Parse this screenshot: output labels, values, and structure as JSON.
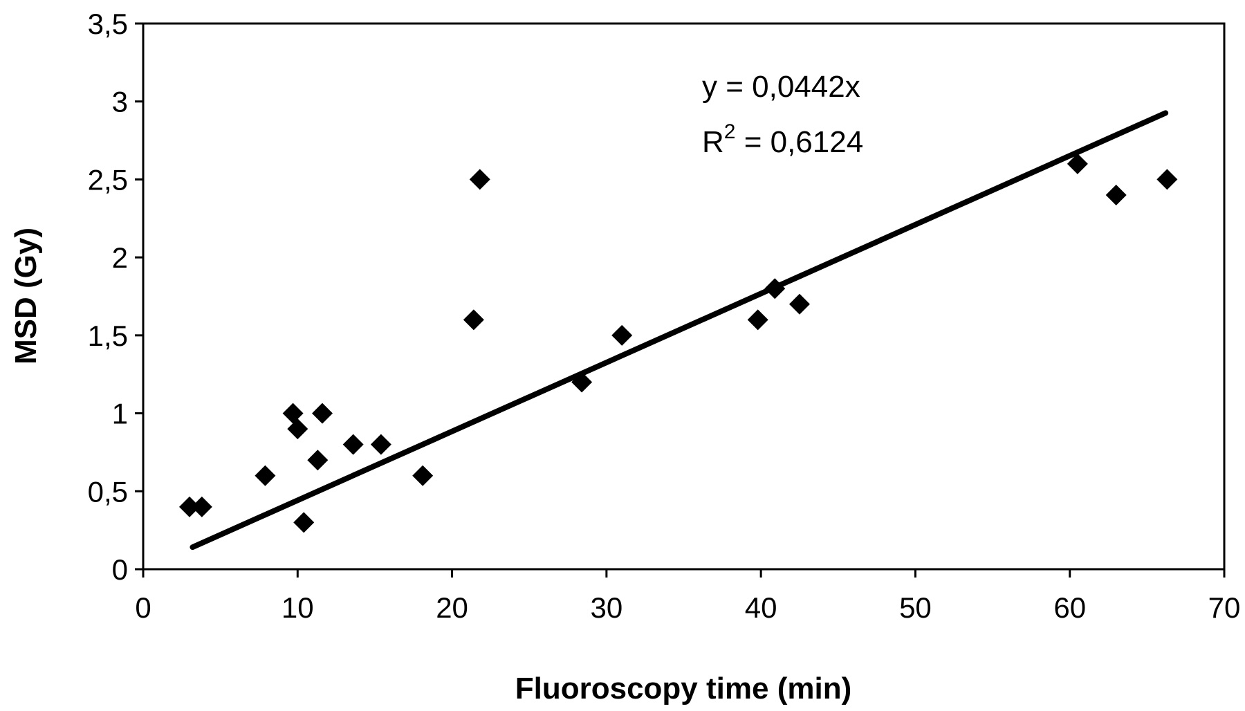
{
  "chart_data": {
    "type": "scatter",
    "xlabel": "Fluoroscopy time (min)",
    "ylabel": "MSD (Gy)",
    "xlim": [
      0,
      70
    ],
    "ylim": [
      0,
      3.5
    ],
    "x_ticks": [
      0,
      10,
      20,
      30,
      40,
      50,
      60,
      70
    ],
    "y_ticks": [
      0,
      0.5,
      1,
      1.5,
      2,
      2.5,
      3,
      3.5
    ],
    "x_tick_labels": [
      "0",
      "10",
      "20",
      "30",
      "40",
      "50",
      "60",
      "70"
    ],
    "y_tick_labels": [
      "0",
      "0,5",
      "1",
      "1,5",
      "2",
      "2,5",
      "3",
      "3,5"
    ],
    "grid": false,
    "marker": "diamond",
    "marker_color": "#000000",
    "points": [
      {
        "x": 3.0,
        "y": 0.4
      },
      {
        "x": 3.8,
        "y": 0.4
      },
      {
        "x": 7.9,
        "y": 0.6
      },
      {
        "x": 9.7,
        "y": 1.0
      },
      {
        "x": 10.0,
        "y": 0.9
      },
      {
        "x": 10.4,
        "y": 0.3
      },
      {
        "x": 11.3,
        "y": 0.7
      },
      {
        "x": 11.6,
        "y": 1.0
      },
      {
        "x": 13.6,
        "y": 0.8
      },
      {
        "x": 15.4,
        "y": 0.8
      },
      {
        "x": 18.1,
        "y": 0.6
      },
      {
        "x": 21.4,
        "y": 1.6
      },
      {
        "x": 21.8,
        "y": 2.5
      },
      {
        "x": 28.4,
        "y": 1.2
      },
      {
        "x": 31.0,
        "y": 1.5
      },
      {
        "x": 39.8,
        "y": 1.6
      },
      {
        "x": 40.9,
        "y": 1.8
      },
      {
        "x": 42.5,
        "y": 1.7
      },
      {
        "x": 60.5,
        "y": 2.6
      },
      {
        "x": 63.0,
        "y": 2.4
      },
      {
        "x": 66.3,
        "y": 2.5
      }
    ],
    "trendline": {
      "type": "linear-through-origin",
      "slope": 0.0442,
      "x_range": [
        3.2,
        66.2
      ],
      "equation_label": "y = 0,0442x",
      "r2_prefix": "R",
      "r2_superscript": "2",
      "r2_value": " = 0,6124"
    }
  }
}
